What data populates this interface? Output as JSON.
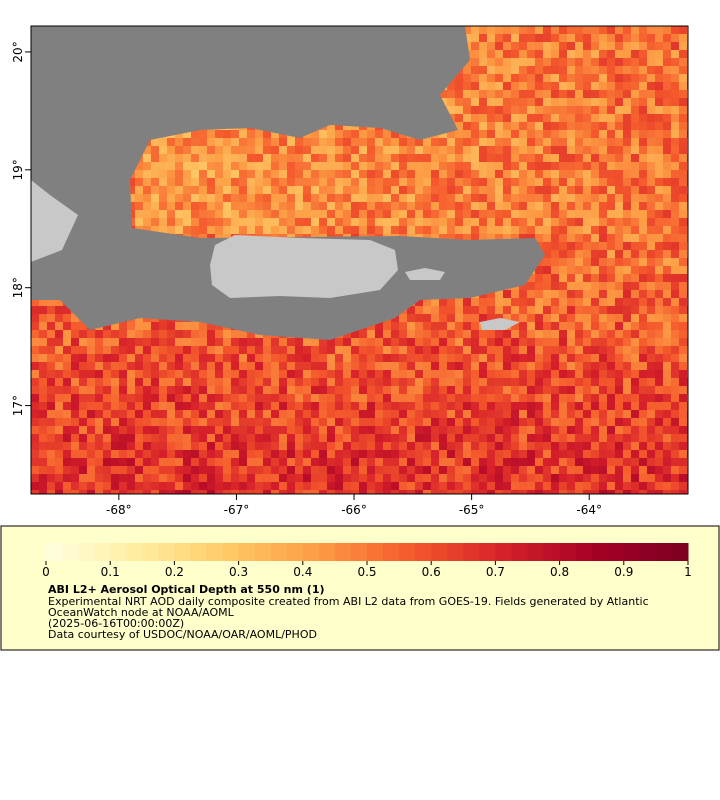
{
  "map": {
    "xlim": [
      -68.747,
      -63.16
    ],
    "ylim": [
      16.25,
      20.22
    ],
    "xticks": [
      {
        "value": -68,
        "label": "-68°"
      },
      {
        "value": -67,
        "label": "-67°"
      },
      {
        "value": -66,
        "label": "-66°"
      },
      {
        "value": -65,
        "label": "-65°"
      },
      {
        "value": -64,
        "label": "-64°"
      }
    ],
    "yticks": [
      {
        "value": 17,
        "label": "17°"
      },
      {
        "value": 18,
        "label": "18°"
      },
      {
        "value": 19,
        "label": "19°"
      },
      {
        "value": 20,
        "label": "20°"
      }
    ]
  },
  "colorbar": {
    "range": [
      0,
      1
    ],
    "ticks": [
      0,
      0.1,
      0.2,
      0.3,
      0.4,
      0.5,
      0.6,
      0.7,
      0.8,
      0.9,
      1
    ],
    "colors": [
      "#fffee0",
      "#ffeda0",
      "#fec965",
      "#fd9a44",
      "#f4582c",
      "#d6202a",
      "#a50026",
      "#7a0020"
    ]
  },
  "legend": {
    "title": "ABI L2+ Aerosol Optical Depth at 550 nm (1)",
    "lines": [
      "Experimental NRT AOD daily composite created from ABI L2 data from GOES-19. Fields generated by Atlantic",
      "OceanWatch node at NOAA/AOML",
      "(2025-06-16T00:00:00Z)",
      "Data courtesy of USDOC/NOAA/OAR/AOML/PHOD"
    ]
  }
}
